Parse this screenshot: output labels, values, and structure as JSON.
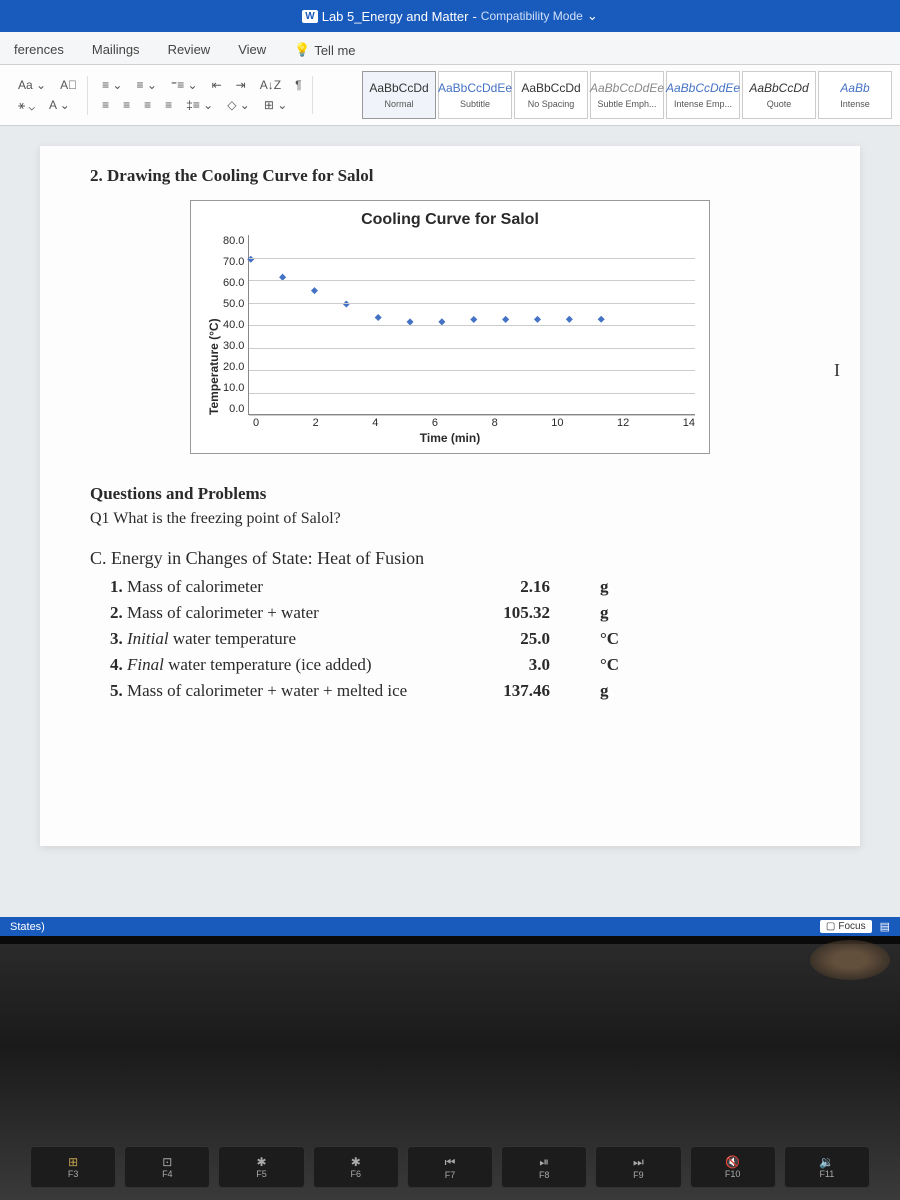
{
  "titlebar": {
    "icon_text": "W",
    "doc_title": "Lab 5_Energy and Matter",
    "sep": " - ",
    "mode": "Compatibility Mode",
    "dropdown": "⌄"
  },
  "tabs": {
    "references": "ferences",
    "mailings": "Mailings",
    "review": "Review",
    "view": "View",
    "tellme_icon": "💡",
    "tellme": "Tell me"
  },
  "ribbon": {
    "aa": "Aa ⌄",
    "clear": "A⃠",
    "bullets": "≡ ⌄",
    "numbering": "≡ ⌄",
    "multilevel": "⁼≡ ⌄",
    "dec_indent": "⇤",
    "inc_indent": "⇥",
    "sort": "A↓Z",
    "para": "¶",
    "align_l": "≡",
    "align_c": "≡",
    "align_r": "≡",
    "align_j": "≡",
    "spacing": "‡≡ ⌄",
    "shading": "◇ ⌄",
    "borders": "⊞ ⌄",
    "highlight": "⚹ ⌄",
    "font_color": "A ⌄"
  },
  "styles": [
    {
      "preview": "AaBbCcDd",
      "name": "Normal",
      "cls": "selected"
    },
    {
      "preview": "AaBbCcDdEe",
      "name": "Subtitle",
      "cls": "blue"
    },
    {
      "preview": "AaBbCcDd",
      "name": "No Spacing",
      "cls": ""
    },
    {
      "preview": "AaBbCcDdEe",
      "name": "Subtle Emph...",
      "cls": "gray italic"
    },
    {
      "preview": "AaBbCcDdEe",
      "name": "Intense Emp...",
      "cls": "blue italic"
    },
    {
      "preview": "AaBbCcDd",
      "name": "Quote",
      "cls": "italic"
    },
    {
      "preview": "AaBb",
      "name": "Intense",
      "cls": "blue italic"
    }
  ],
  "doc": {
    "section2_title": "2.  Drawing the Cooling Curve for Salol",
    "chart": {
      "type": "line-scatter",
      "title": "Cooling Curve for Salol",
      "ylabel": "Temperature (°C)",
      "xlabel": "Time (min)",
      "ylim": [
        0,
        80
      ],
      "ytick_step": 10,
      "yticks": [
        "80.0",
        "70.0",
        "60.0",
        "50.0",
        "40.0",
        "30.0",
        "20.0",
        "10.0",
        "0.0"
      ],
      "xlim": [
        0,
        14
      ],
      "xtick_step": 2,
      "xticks": [
        "0",
        "2",
        "4",
        "6",
        "8",
        "10",
        "12",
        "14"
      ],
      "series_color": "#4472c4",
      "marker": "diamond",
      "marker_size": 5,
      "line_width": 2,
      "grid_color": "#cccccc",
      "background_color": "#ffffff",
      "x_values": [
        0,
        1,
        2,
        3,
        4,
        5,
        6,
        7,
        8,
        9,
        10,
        11
      ],
      "y_values": [
        70,
        62,
        56,
        50,
        44,
        42,
        42,
        43,
        43,
        43,
        43,
        43
      ]
    },
    "qp_heading": "Questions and Problems",
    "q1": "Q1   What is the freezing point of Salol?",
    "section_c_title": "C.  Energy in Changes of State: Heat of Fusion",
    "rows": [
      {
        "num": "1.",
        "label": "Mass of calorimeter",
        "value": "2.16",
        "unit": "g",
        "italic": false
      },
      {
        "num": "2.",
        "label": "Mass of calorimeter + water",
        "value": "105.32",
        "unit": "g",
        "italic": false
      },
      {
        "num": "3.",
        "label": "Initial water temperature",
        "value": "25.0",
        "unit": "°C",
        "italic": true
      },
      {
        "num": "4.",
        "label": "Final water temperature (ice added)",
        "value": "3.0",
        "unit": "°C",
        "italic": true
      },
      {
        "num": "5.",
        "label": "Mass of calorimeter + water + melted ice",
        "value": "137.46",
        "unit": "g",
        "italic": false
      }
    ]
  },
  "statusbar": {
    "left": "States)",
    "focus": "Focus",
    "focus_icon": "▢"
  },
  "fnkeys": [
    {
      "sym": "⊞",
      "label": "F3",
      "col": "#c0a050"
    },
    {
      "sym": "⊡",
      "label": "F4",
      "col": "#aaa"
    },
    {
      "sym": "✱",
      "label": "F5",
      "col": "#aaa"
    },
    {
      "sym": "✱",
      "label": "F6",
      "col": "#aaa"
    },
    {
      "sym": "⏮",
      "label": "F7",
      "col": "#aaa"
    },
    {
      "sym": "⏯",
      "label": "F8",
      "col": "#aaa"
    },
    {
      "sym": "⏭",
      "label": "F9",
      "col": "#aaa"
    },
    {
      "sym": "🔇",
      "label": "F10",
      "col": "#aaa"
    },
    {
      "sym": "🔉",
      "label": "F11",
      "col": "#aaa"
    }
  ],
  "cursor": "I"
}
